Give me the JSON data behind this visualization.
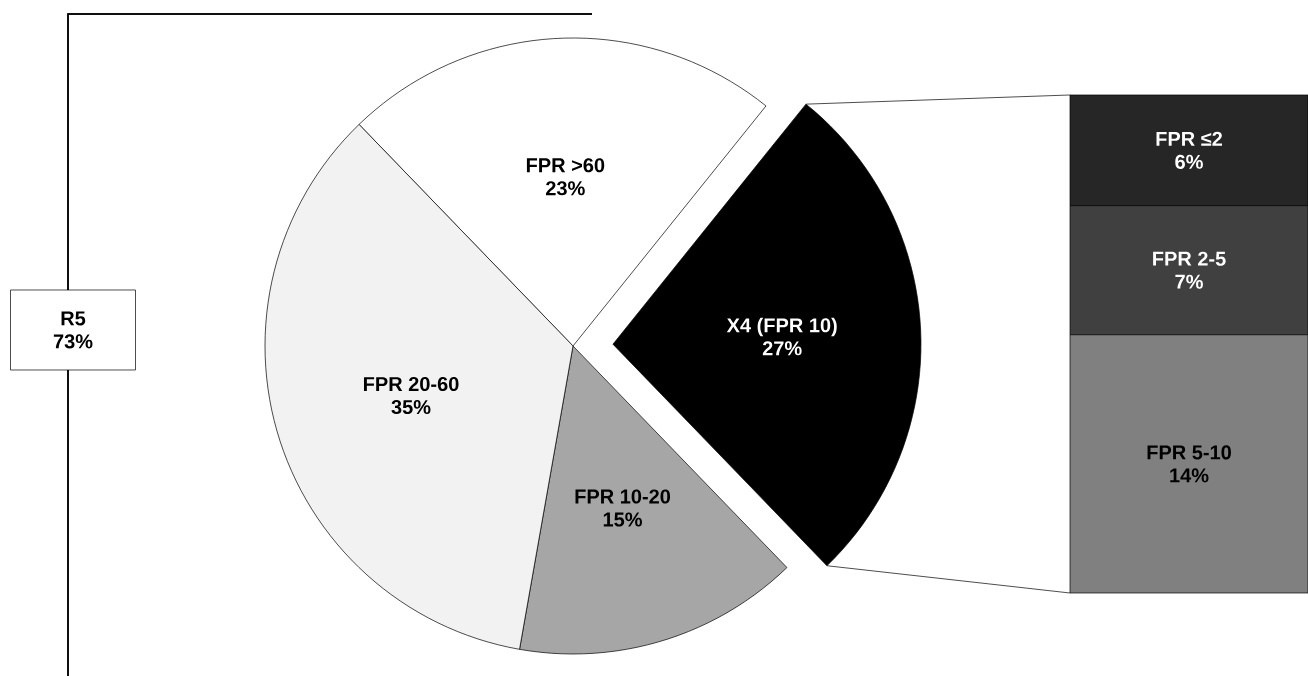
{
  "chart_data": [
    {
      "type": "pie",
      "categories": [
        "FPR >60",
        "X4 (FPR 10)",
        "FPR 10-20",
        "FPR 20-60"
      ],
      "values": [
        23,
        27,
        15,
        35
      ],
      "value_labels": [
        "23%",
        "27%",
        "15%",
        "35%"
      ],
      "colors": [
        "#ffffff",
        "#000000",
        "#a6a6a6",
        "#f2f2f2"
      ],
      "annotations": [
        "R5",
        "73%"
      ]
    },
    {
      "type": "bar",
      "stacked": true,
      "categories": [
        null
      ],
      "series": [
        {
          "name": "FPR 5-10",
          "color": "#808080",
          "values": [
            14
          ],
          "value_labels": [
            "14%"
          ]
        },
        {
          "name": "FPR 2-5",
          "color": "#404040",
          "values": [
            7
          ],
          "value_labels": [
            "7%"
          ]
        },
        {
          "name": "FPR ≤2",
          "color": "#262626",
          "values": [
            6
          ],
          "value_labels": [
            "6%"
          ]
        }
      ]
    }
  ]
}
